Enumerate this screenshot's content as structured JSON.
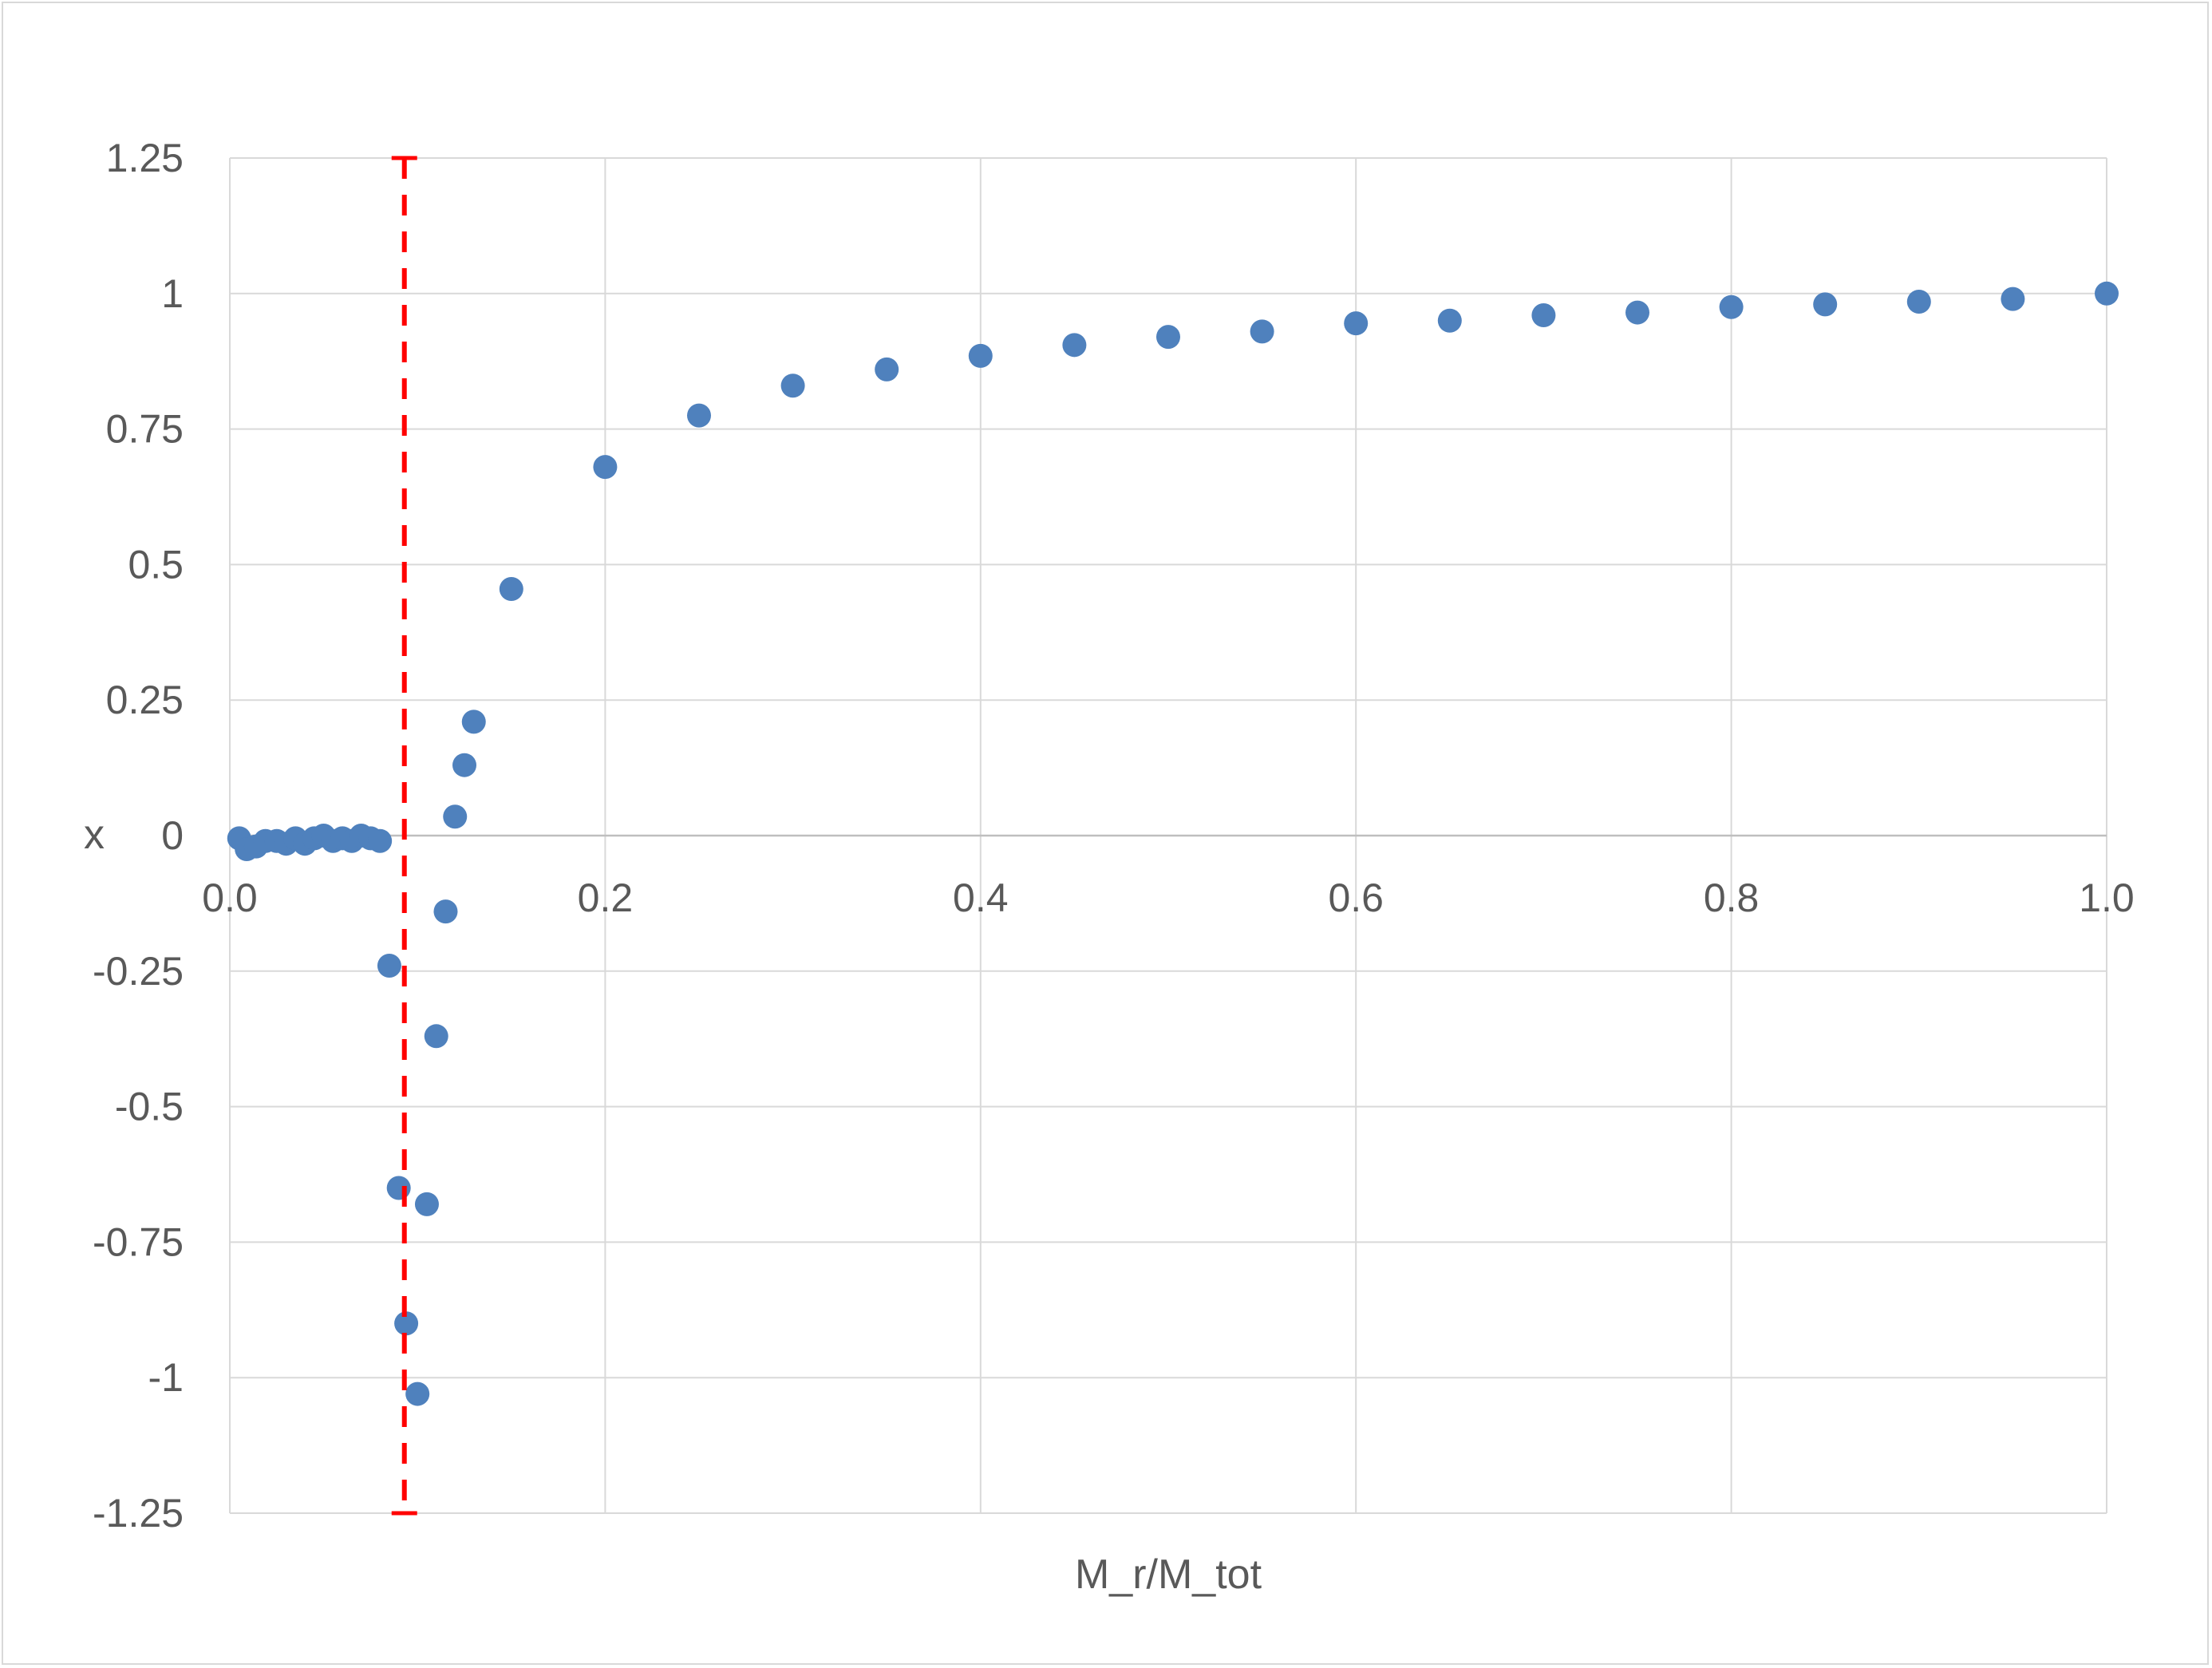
{
  "chart_data": {
    "type": "scatter",
    "title": "",
    "xlabel": "M_r/M_tot",
    "ylabel": "x",
    "xlim": [
      0.0,
      1.0
    ],
    "ylim": [
      -1.25,
      1.25
    ],
    "x_ticks": [
      "0.0",
      "0.2",
      "0.4",
      "0.6",
      "0.8",
      "1.0"
    ],
    "y_ticks": [
      "1.25",
      "1",
      "0.75",
      "0.5",
      "0.25",
      "0",
      "-0.25",
      "-0.5",
      "-0.75",
      "-1",
      "-1.25"
    ],
    "x_tick_values": [
      0.0,
      0.2,
      0.4,
      0.6,
      0.8,
      1.0
    ],
    "y_tick_values": [
      1.25,
      1.0,
      0.75,
      0.5,
      0.25,
      0.0,
      -0.25,
      -0.5,
      -0.75,
      -1.0,
      -1.25
    ],
    "grid": true,
    "series": [
      {
        "color": "#4f81bd",
        "x": [
          0.005,
          0.009,
          0.014,
          0.019,
          0.025,
          0.03,
          0.035,
          0.04,
          0.045,
          0.05,
          0.055,
          0.06,
          0.065,
          0.07,
          0.075,
          0.08,
          0.085,
          0.09,
          0.094,
          0.1,
          0.105,
          0.11,
          0.115,
          0.12,
          0.125,
          0.13,
          0.15,
          0.2,
          0.25,
          0.3,
          0.35,
          0.4,
          0.45,
          0.5,
          0.55,
          0.6,
          0.65,
          0.7,
          0.75,
          0.8,
          0.85,
          0.9,
          0.95,
          1.0
        ],
        "y": [
          -0.005,
          -0.025,
          -0.02,
          -0.01,
          -0.01,
          -0.015,
          -0.005,
          -0.015,
          -0.005,
          0.0,
          -0.01,
          -0.005,
          -0.01,
          0.0,
          -0.005,
          -0.01,
          -0.24,
          -0.65,
          -0.9,
          -1.03,
          -0.68,
          -0.37,
          -0.14,
          0.035,
          0.13,
          0.21,
          0.455,
          0.68,
          0.775,
          0.83,
          0.86,
          0.885,
          0.905,
          0.92,
          0.93,
          0.945,
          0.95,
          0.96,
          0.965,
          0.975,
          0.98,
          0.985,
          0.99,
          1.0
        ]
      }
    ],
    "reference_line": {
      "type": "vertical",
      "x": 0.093,
      "y_range": [
        -1.25,
        1.25
      ],
      "color": "#ff0000",
      "style": "dashed"
    }
  }
}
